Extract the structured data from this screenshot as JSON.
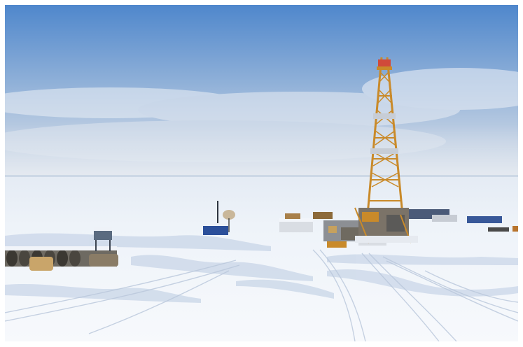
{
  "scene": {
    "subject": "drilling-rig",
    "setting": "frozen-tundra",
    "palette": {
      "sky_top": "#5b8fd0",
      "sky_bottom": "#c6d4e6",
      "snow": "#f2f6fb",
      "snow_shadow": "#c4d2e6",
      "derrick": "#c98a2a"
    }
  }
}
